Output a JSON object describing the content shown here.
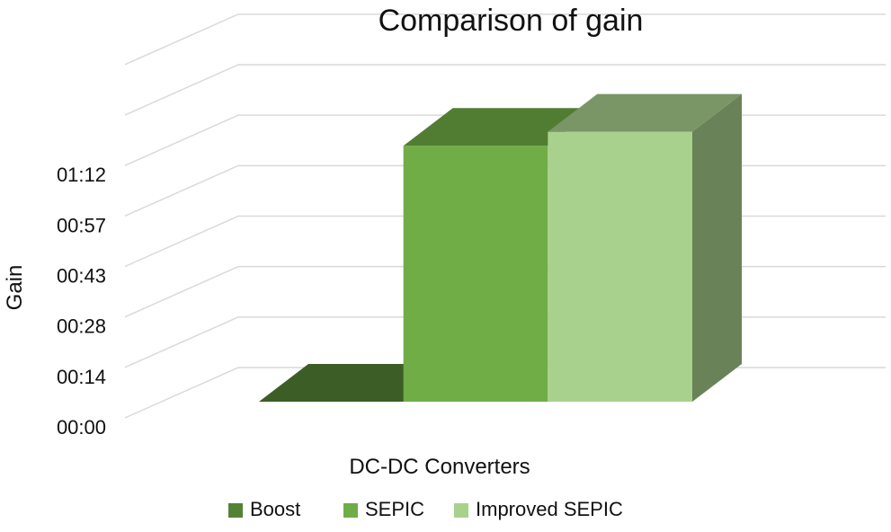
{
  "chart_data": {
    "type": "bar",
    "title": "Comparison of gain",
    "xlabel": "DC-DC Converters",
    "ylabel": "Gain",
    "y_ticks": [
      "00:00",
      "00:14",
      "00:28",
      "00:43",
      "00:57",
      "01:12"
    ],
    "ylim_minutes": [
      0,
      86.4
    ],
    "grid": true,
    "three_d": true,
    "legend_position": "bottom",
    "series": [
      {
        "name": "Boost",
        "value_label": "00:00",
        "value_minutes": 0,
        "color": "#548235"
      },
      {
        "name": "SEPIC",
        "value_label": "01:13",
        "value_minutes": 73,
        "color": "#70AD47"
      },
      {
        "name": "Improved SEPIC",
        "value_label": "01:17",
        "value_minutes": 77,
        "color": "#A9D18E"
      }
    ]
  }
}
